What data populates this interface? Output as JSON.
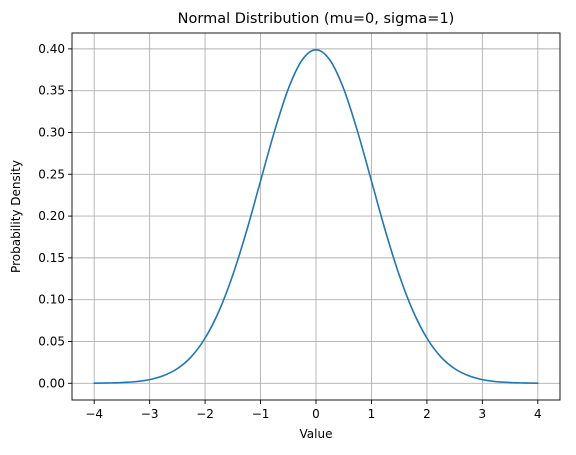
{
  "chart_data": {
    "type": "line",
    "title": "Normal Distribution (mu=0, sigma=1)",
    "xlabel": "Value",
    "ylabel": "Probability Density",
    "xlim": [
      -4.4,
      4.4
    ],
    "ylim": [
      -0.02,
      0.419
    ],
    "grid": true,
    "x_ticks": [
      "−4",
      "−3",
      "−2",
      "−1",
      "0",
      "1",
      "2",
      "3",
      "4"
    ],
    "x_tick_values": [
      -4,
      -3,
      -2,
      -1,
      0,
      1,
      2,
      3,
      4
    ],
    "y_ticks": [
      "0.00",
      "0.05",
      "0.10",
      "0.15",
      "0.20",
      "0.25",
      "0.30",
      "0.35",
      "0.40"
    ],
    "y_tick_values": [
      0,
      0.05,
      0.1,
      0.15,
      0.2,
      0.25,
      0.3,
      0.35,
      0.4
    ],
    "series": [
      {
        "color": "#1f77b4",
        "x": [
          -4.0,
          -3.75,
          -3.5,
          -3.25,
          -3.0,
          -2.75,
          -2.5,
          -2.25,
          -2.0,
          -1.75,
          -1.5,
          -1.25,
          -1.0,
          -0.75,
          -0.5,
          -0.25,
          0.0,
          0.25,
          0.5,
          0.75,
          1.0,
          1.25,
          1.5,
          1.75,
          2.0,
          2.25,
          2.5,
          2.75,
          3.0,
          3.25,
          3.5,
          3.75,
          4.0
        ],
        "y": [
          0.0001,
          0.0004,
          0.0009,
          0.002,
          0.0044,
          0.0091,
          0.0175,
          0.0317,
          0.054,
          0.0863,
          0.1295,
          0.1826,
          0.242,
          0.3011,
          0.3521,
          0.3867,
          0.3989,
          0.3867,
          0.3521,
          0.3011,
          0.242,
          0.1826,
          0.1295,
          0.0863,
          0.054,
          0.0317,
          0.0175,
          0.0091,
          0.0044,
          0.002,
          0.0009,
          0.0004,
          0.0001
        ]
      }
    ]
  }
}
